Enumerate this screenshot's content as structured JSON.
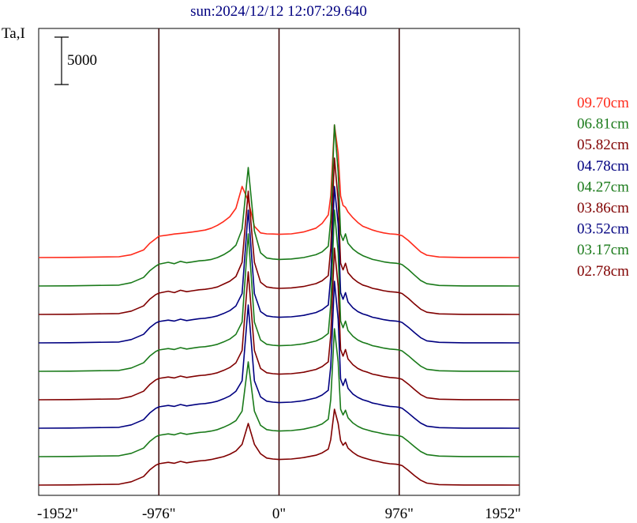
{
  "chart_data": {
    "type": "line",
    "title": "sun:2024/12/12 12:07:29.640",
    "ylabel": "Ta,I",
    "scale_bar_label": "5000",
    "scale_bar_value": 5000,
    "xlim": [
      -1952,
      1952
    ],
    "xticks": [
      {
        "value": -1952,
        "label": "-1952\""
      },
      {
        "value": -976,
        "label": "-976\""
      },
      {
        "value": 0,
        "label": "0\""
      },
      {
        "value": 976,
        "label": "976\""
      },
      {
        "value": 1952,
        "label": "1952\""
      }
    ],
    "vlines": [
      -976,
      0,
      976
    ],
    "offset_step": 3000,
    "colors": {
      "red": "#ff2a1a",
      "green": "#1a7a1a",
      "maroon": "#800000",
      "blue": "#000080",
      "axis": "#000000",
      "title": "#000080"
    },
    "x": [
      -1952,
      -1700,
      -1300,
      -1200,
      -1100,
      -1050,
      -1000,
      -976,
      -900,
      -850,
      -800,
      -750,
      -700,
      -650,
      -600,
      -550,
      -500,
      -450,
      -400,
      -350,
      -300,
      -250,
      -200,
      -150,
      -100,
      -50,
      0,
      100,
      200,
      300,
      350,
      400,
      420,
      450,
      480,
      500,
      520,
      540,
      560,
      600,
      640,
      680,
      720,
      760,
      800,
      850,
      900,
      950,
      976,
      1000,
      1050,
      1100,
      1150,
      1200,
      1300,
      1500,
      1952
    ],
    "series": [
      {
        "name": "09.70cm",
        "color": "red",
        "values": [
          0,
          20,
          80,
          300,
          800,
          1500,
          2000,
          2250,
          2380,
          2480,
          2550,
          2620,
          2700,
          2800,
          2900,
          3100,
          3400,
          3800,
          4300,
          5200,
          7500,
          6000,
          3300,
          2600,
          2500,
          2480,
          2450,
          2500,
          2700,
          3100,
          3600,
          4500,
          6500,
          14000,
          11000,
          6500,
          5500,
          5300,
          4800,
          4200,
          3700,
          3300,
          3100,
          2900,
          2750,
          2600,
          2500,
          2450,
          2400,
          2300,
          1800,
          1200,
          600,
          250,
          60,
          10,
          0
        ]
      },
      {
        "name": "06.81cm",
        "color": "green",
        "values": [
          0,
          20,
          90,
          350,
          900,
          1600,
          2100,
          2300,
          2500,
          2350,
          2600,
          2450,
          2550,
          2650,
          2700,
          2800,
          3000,
          3300,
          3700,
          4300,
          6000,
          12500,
          5800,
          3500,
          2950,
          2850,
          2800,
          2850,
          3000,
          3300,
          3600,
          4200,
          7000,
          17000,
          12000,
          5500,
          4800,
          5500,
          4500,
          3900,
          3500,
          3200,
          3000,
          2800,
          2700,
          2550,
          2450,
          2400,
          2350,
          2250,
          1750,
          1150,
          580,
          240,
          60,
          10,
          0
        ]
      },
      {
        "name": "05.82cm",
        "color": "maroon",
        "values": [
          0,
          20,
          90,
          350,
          900,
          1600,
          2100,
          2250,
          2450,
          2300,
          2550,
          2400,
          2500,
          2600,
          2650,
          2750,
          2900,
          3200,
          3500,
          4000,
          5500,
          13000,
          5500,
          3400,
          2900,
          2800,
          2750,
          2800,
          2950,
          3250,
          3550,
          4100,
          7000,
          16500,
          12000,
          5400,
          4700,
          5400,
          4400,
          3800,
          3400,
          3100,
          2950,
          2750,
          2650,
          2500,
          2400,
          2350,
          2300,
          2200,
          1700,
          1100,
          560,
          230,
          55,
          10,
          0
        ]
      },
      {
        "name": "04.78cm",
        "color": "blue",
        "values": [
          0,
          20,
          90,
          350,
          900,
          1600,
          2100,
          2250,
          2400,
          2300,
          2500,
          2350,
          2450,
          2550,
          2600,
          2700,
          2850,
          3100,
          3400,
          3900,
          5200,
          14000,
          5200,
          3300,
          2850,
          2750,
          2700,
          2750,
          2900,
          3200,
          3500,
          4000,
          7000,
          16500,
          12500,
          5300,
          4600,
          5300,
          4300,
          3700,
          3300,
          3050,
          2900,
          2700,
          2600,
          2450,
          2350,
          2300,
          2250,
          2150,
          1650,
          1080,
          550,
          220,
          55,
          10,
          0
        ]
      },
      {
        "name": "04.27cm",
        "color": "green",
        "values": [
          0,
          20,
          90,
          350,
          900,
          1600,
          2100,
          2250,
          2400,
          2300,
          2500,
          2350,
          2450,
          2550,
          2600,
          2700,
          2850,
          3100,
          3400,
          3900,
          5200,
          14500,
          5200,
          3300,
          2850,
          2750,
          2700,
          2750,
          2900,
          3200,
          3500,
          4000,
          7000,
          17000,
          12500,
          5300,
          4600,
          5300,
          4300,
          3700,
          3300,
          3050,
          2900,
          2700,
          2600,
          2450,
          2350,
          2300,
          2250,
          2150,
          1650,
          1080,
          550,
          220,
          55,
          10,
          0
        ]
      },
      {
        "name": "03.86cm",
        "color": "maroon",
        "values": [
          0,
          20,
          90,
          350,
          900,
          1600,
          2100,
          2250,
          2400,
          2300,
          2500,
          2350,
          2450,
          2550,
          2600,
          2700,
          2850,
          3100,
          3400,
          3900,
          5200,
          13500,
          5200,
          3300,
          2850,
          2750,
          2700,
          2750,
          2900,
          3200,
          3500,
          4000,
          6800,
          16000,
          12000,
          5300,
          4600,
          5300,
          4300,
          3700,
          3300,
          3050,
          2900,
          2700,
          2600,
          2450,
          2350,
          2300,
          2250,
          2150,
          1650,
          1080,
          550,
          220,
          55,
          10,
          0
        ]
      },
      {
        "name": "03.52cm",
        "color": "blue",
        "values": [
          0,
          20,
          90,
          350,
          900,
          1600,
          2100,
          2250,
          2400,
          2300,
          2500,
          2350,
          2450,
          2550,
          2600,
          2700,
          2850,
          3100,
          3400,
          3900,
          5000,
          13000,
          5000,
          3300,
          2850,
          2750,
          2700,
          2750,
          2900,
          3200,
          3500,
          4000,
          6500,
          15500,
          11500,
          5200,
          4500,
          5200,
          4200,
          3600,
          3250,
          3000,
          2850,
          2650,
          2550,
          2400,
          2300,
          2250,
          2200,
          2100,
          1600,
          1050,
          540,
          220,
          55,
          10,
          0
        ]
      },
      {
        "name": "03.17cm",
        "color": "green",
        "values": [
          0,
          20,
          90,
          350,
          900,
          1600,
          2100,
          2250,
          2400,
          2300,
          2500,
          2350,
          2450,
          2550,
          2600,
          2700,
          2850,
          3100,
          3400,
          3800,
          4800,
          10000,
          4800,
          3300,
          2850,
          2750,
          2700,
          2750,
          2900,
          3200,
          3450,
          3950,
          6000,
          13500,
          10000,
          5000,
          4400,
          4900,
          4100,
          3550,
          3200,
          2950,
          2800,
          2650,
          2550,
          2400,
          2300,
          2250,
          2200,
          2100,
          1600,
          1050,
          540,
          220,
          55,
          10,
          0
        ]
      },
      {
        "name": "02.78cm",
        "color": "maroon",
        "values": [
          0,
          20,
          90,
          350,
          900,
          1600,
          2100,
          2250,
          2400,
          2300,
          2500,
          2350,
          2450,
          2550,
          2600,
          2700,
          2850,
          3000,
          3250,
          3600,
          4300,
          6500,
          4300,
          3300,
          2850,
          2750,
          2700,
          2750,
          2900,
          3150,
          3400,
          3800,
          4800,
          8000,
          6500,
          4700,
          4200,
          4500,
          3900,
          3450,
          3100,
          2900,
          2750,
          2600,
          2500,
          2350,
          2250,
          2200,
          2150,
          2050,
          1550,
          1000,
          520,
          210,
          50,
          10,
          0
        ]
      }
    ]
  }
}
